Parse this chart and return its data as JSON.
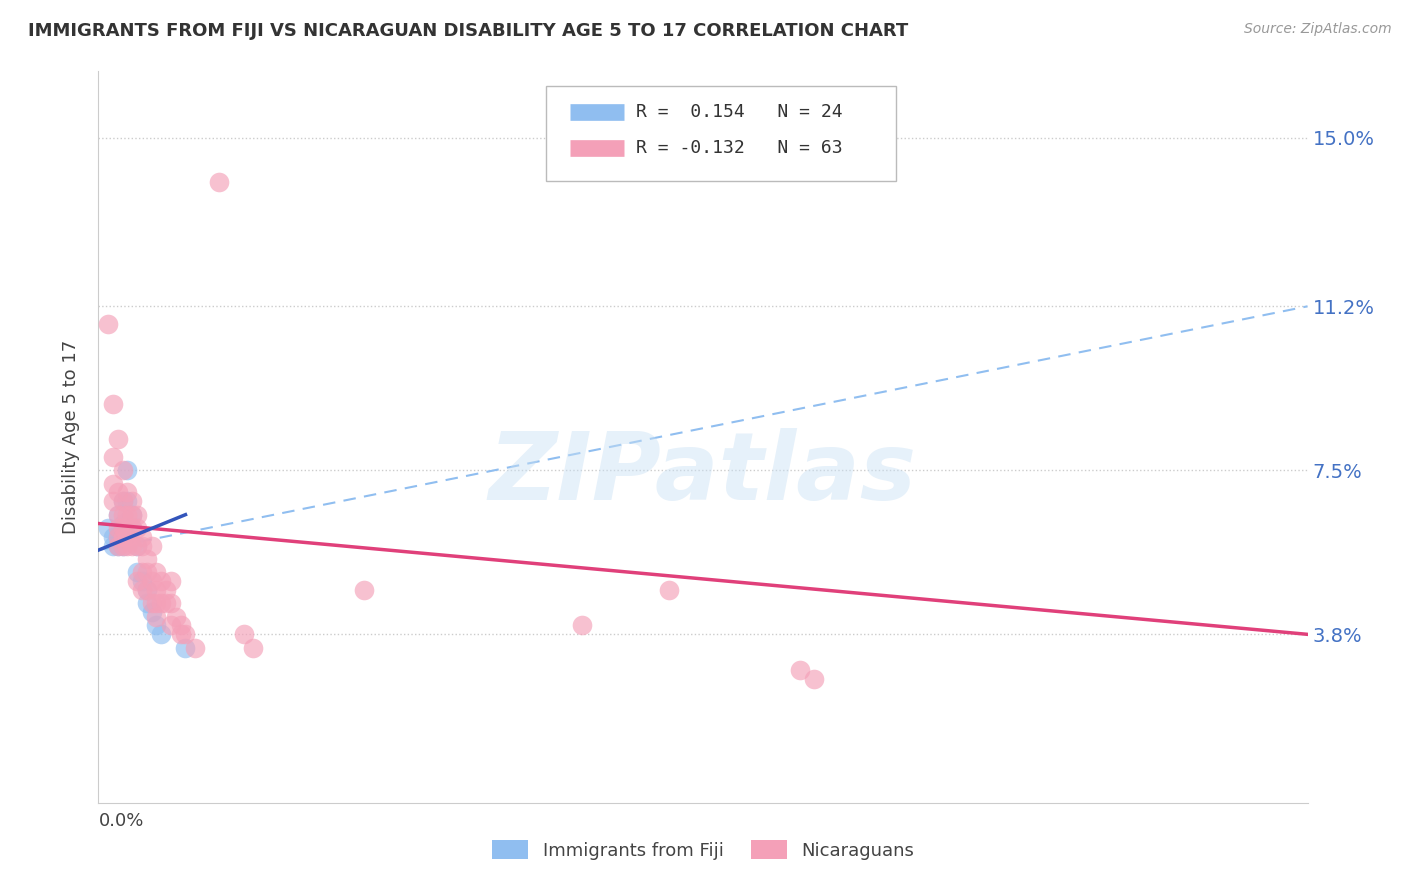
{
  "title": "IMMIGRANTS FROM FIJI VS NICARAGUAN DISABILITY AGE 5 TO 17 CORRELATION CHART",
  "source": "Source: ZipAtlas.com",
  "ylabel": "Disability Age 5 to 17",
  "xlim": [
    0.0,
    0.25
  ],
  "ylim": [
    0.0,
    0.165
  ],
  "watermark_text": "ZIPatlas",
  "legend_fiji_R": "R =  0.154",
  "legend_fiji_N": "N = 24",
  "legend_nic_R": "R = -0.132",
  "legend_nic_N": "N = 63",
  "fiji_color": "#90BEF0",
  "nic_color": "#F4A0B8",
  "fiji_line_color": "#3355BB",
  "nic_line_color": "#E0407A",
  "dashed_line_color": "#90BEF0",
  "ytick_vals": [
    0.038,
    0.075,
    0.112,
    0.15
  ],
  "ytick_labels": [
    "3.8%",
    "7.5%",
    "11.2%",
    "15.0%"
  ],
  "fiji_points": [
    [
      0.002,
      0.062
    ],
    [
      0.003,
      0.06
    ],
    [
      0.003,
      0.058
    ],
    [
      0.004,
      0.065
    ],
    [
      0.004,
      0.06
    ],
    [
      0.004,
      0.058
    ],
    [
      0.005,
      0.068
    ],
    [
      0.005,
      0.063
    ],
    [
      0.005,
      0.06
    ],
    [
      0.005,
      0.058
    ],
    [
      0.006,
      0.075
    ],
    [
      0.006,
      0.068
    ],
    [
      0.006,
      0.06
    ],
    [
      0.007,
      0.065
    ],
    [
      0.007,
      0.062
    ],
    [
      0.008,
      0.058
    ],
    [
      0.008,
      0.052
    ],
    [
      0.009,
      0.05
    ],
    [
      0.01,
      0.048
    ],
    [
      0.01,
      0.045
    ],
    [
      0.011,
      0.043
    ],
    [
      0.012,
      0.04
    ],
    [
      0.013,
      0.038
    ],
    [
      0.018,
      0.035
    ]
  ],
  "nic_points": [
    [
      0.002,
      0.108
    ],
    [
      0.003,
      0.09
    ],
    [
      0.003,
      0.078
    ],
    [
      0.003,
      0.072
    ],
    [
      0.003,
      0.068
    ],
    [
      0.004,
      0.082
    ],
    [
      0.004,
      0.07
    ],
    [
      0.004,
      0.065
    ],
    [
      0.004,
      0.062
    ],
    [
      0.004,
      0.06
    ],
    [
      0.004,
      0.058
    ],
    [
      0.005,
      0.075
    ],
    [
      0.005,
      0.068
    ],
    [
      0.005,
      0.065
    ],
    [
      0.005,
      0.062
    ],
    [
      0.005,
      0.06
    ],
    [
      0.005,
      0.058
    ],
    [
      0.006,
      0.07
    ],
    [
      0.006,
      0.065
    ],
    [
      0.006,
      0.06
    ],
    [
      0.006,
      0.058
    ],
    [
      0.007,
      0.068
    ],
    [
      0.007,
      0.065
    ],
    [
      0.007,
      0.062
    ],
    [
      0.007,
      0.058
    ],
    [
      0.008,
      0.065
    ],
    [
      0.008,
      0.062
    ],
    [
      0.008,
      0.058
    ],
    [
      0.008,
      0.05
    ],
    [
      0.009,
      0.06
    ],
    [
      0.009,
      0.058
    ],
    [
      0.009,
      0.052
    ],
    [
      0.009,
      0.048
    ],
    [
      0.01,
      0.055
    ],
    [
      0.01,
      0.052
    ],
    [
      0.01,
      0.048
    ],
    [
      0.011,
      0.058
    ],
    [
      0.011,
      0.05
    ],
    [
      0.011,
      0.045
    ],
    [
      0.012,
      0.052
    ],
    [
      0.012,
      0.048
    ],
    [
      0.012,
      0.045
    ],
    [
      0.012,
      0.042
    ],
    [
      0.013,
      0.05
    ],
    [
      0.013,
      0.045
    ],
    [
      0.014,
      0.048
    ],
    [
      0.014,
      0.045
    ],
    [
      0.015,
      0.05
    ],
    [
      0.015,
      0.045
    ],
    [
      0.015,
      0.04
    ],
    [
      0.016,
      0.042
    ],
    [
      0.017,
      0.04
    ],
    [
      0.017,
      0.038
    ],
    [
      0.018,
      0.038
    ],
    [
      0.02,
      0.035
    ],
    [
      0.025,
      0.14
    ],
    [
      0.03,
      0.038
    ],
    [
      0.032,
      0.035
    ],
    [
      0.055,
      0.048
    ],
    [
      0.1,
      0.04
    ],
    [
      0.118,
      0.048
    ],
    [
      0.145,
      0.03
    ],
    [
      0.148,
      0.028
    ]
  ]
}
